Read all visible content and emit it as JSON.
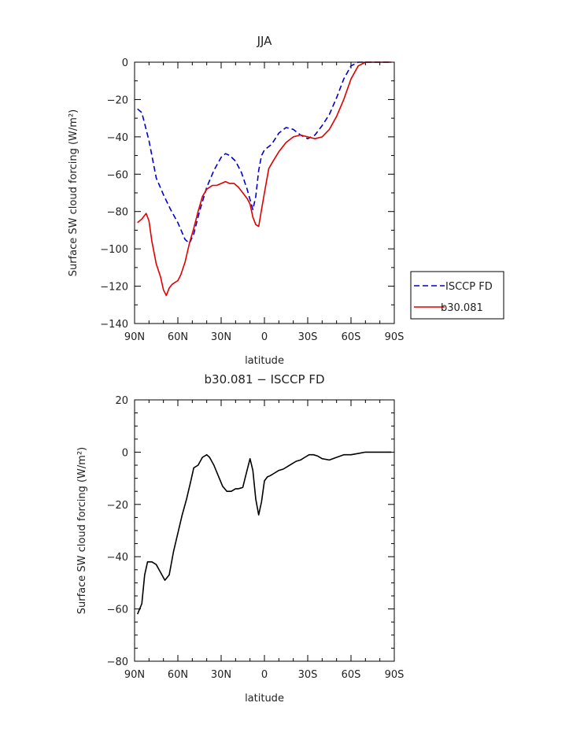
{
  "colors": {
    "isccp": "#0000cc",
    "model": "#e00000",
    "diff": "#000000",
    "axis": "#000000"
  },
  "chart_data": [
    {
      "type": "line",
      "title": "JJA",
      "xlabel": "latitude",
      "ylabel": "Surface SW cloud forcing (W/m²)",
      "xlim": [
        90,
        -90
      ],
      "ylim": [
        -140,
        0
      ],
      "xticks": [
        90,
        60,
        30,
        0,
        -30,
        -60,
        -90
      ],
      "xtick_labels": [
        "90N",
        "60N",
        "30N",
        "0",
        "30S",
        "60S",
        "90S"
      ],
      "yticks": [
        0,
        -20,
        -40,
        -60,
        -80,
        -100,
        -120,
        -140
      ],
      "ytick_labels": [
        "0",
        "−20",
        "−40",
        "−60",
        "−80",
        "−100",
        "−120",
        "−140"
      ],
      "legend_position": "right",
      "series": [
        {
          "name": "ISCCP FD",
          "style": "dashed",
          "color_key": "isccp",
          "x": [
            88,
            85,
            80,
            75,
            70,
            65,
            60,
            55,
            52,
            49,
            45,
            40,
            35,
            30,
            27,
            24,
            20,
            16,
            12,
            8,
            6,
            4,
            2,
            0,
            -5,
            -10,
            -15,
            -20,
            -25,
            -30,
            -35,
            -40,
            -45,
            -50,
            -55,
            -60,
            -65,
            -70,
            -75,
            -80,
            -85,
            -88
          ],
          "y": [
            -25,
            -27,
            -42,
            -62,
            -71,
            -79,
            -86,
            -95,
            -97,
            -92,
            -80,
            -67,
            -58,
            -51,
            -49,
            -50,
            -53,
            -59,
            -68,
            -79,
            -72,
            -58,
            -50,
            -47,
            -44,
            -38,
            -35,
            -36,
            -39,
            -41,
            -39,
            -34,
            -28,
            -19,
            -9,
            -2,
            0,
            0,
            0,
            0,
            0,
            0
          ]
        },
        {
          "name": "b30.081",
          "style": "solid",
          "color_key": "model",
          "x": [
            88,
            85,
            82,
            80,
            78,
            75,
            72,
            70,
            68,
            66,
            64,
            62,
            60,
            58,
            55,
            52,
            49,
            46,
            43,
            40,
            38,
            36,
            33,
            30,
            27,
            24,
            21,
            18,
            15,
            12,
            10,
            8,
            6,
            4,
            2,
            0,
            -3,
            -6,
            -10,
            -15,
            -20,
            -25,
            -30,
            -35,
            -40,
            -45,
            -50,
            -55,
            -60,
            -65,
            -70,
            -75,
            -80,
            -85,
            -88
          ],
          "y": [
            -86,
            -84,
            -81,
            -85,
            -96,
            -108,
            -115,
            -122,
            -125,
            -121,
            -119,
            -118,
            -117,
            -114,
            -107,
            -97,
            -89,
            -80,
            -72,
            -68,
            -67,
            -66,
            -66,
            -65,
            -64,
            -65,
            -65,
            -67,
            -70,
            -73,
            -76,
            -83,
            -87,
            -88,
            -79,
            -70,
            -57,
            -53,
            -48,
            -43,
            -40,
            -39,
            -40,
            -41,
            -40,
            -36,
            -29,
            -20,
            -9,
            -2,
            0,
            0,
            0,
            0,
            0
          ]
        }
      ]
    },
    {
      "type": "line",
      "title": "b30.081 − ISCCP FD",
      "xlabel": "latitude",
      "ylabel": "Surface SW cloud forcing (W/m²)",
      "xlim": [
        90,
        -90
      ],
      "ylim": [
        -80,
        20
      ],
      "xticks": [
        90,
        60,
        30,
        0,
        -30,
        -60,
        -90
      ],
      "xtick_labels": [
        "90N",
        "60N",
        "30N",
        "0",
        "30S",
        "60S",
        "90S"
      ],
      "yticks": [
        20,
        0,
        -20,
        -40,
        -60,
        -80
      ],
      "ytick_labels": [
        "20",
        "0",
        "−20",
        "−40",
        "−60",
        "−80"
      ],
      "series": [
        {
          "style": "solid",
          "color_key": "diff",
          "x": [
            88,
            85,
            83,
            81,
            78,
            75,
            72,
            69,
            66,
            63,
            60,
            57,
            54,
            51,
            49,
            46,
            43,
            40,
            38,
            35,
            32,
            29,
            26,
            23,
            20,
            18,
            15,
            13,
            10,
            8,
            6,
            4,
            2,
            0,
            -2,
            -4,
            -7,
            -10,
            -13,
            -16,
            -19,
            -22,
            -25,
            -28,
            -31,
            -34,
            -37,
            -40,
            -45,
            -50,
            -55,
            -60,
            -65,
            -70,
            -75,
            -80,
            -85,
            -88
          ],
          "y": [
            -62,
            -58,
            -47,
            -42,
            -42,
            -43,
            -46,
            -49,
            -47,
            -38,
            -31,
            -24,
            -18,
            -11,
            -6,
            -5,
            -2,
            -1,
            -2,
            -5,
            -9,
            -13,
            -15,
            -15,
            -14,
            -14,
            -13.5,
            -9,
            -2.5,
            -7,
            -18,
            -24,
            -19,
            -11,
            -9.5,
            -9,
            -8,
            -7,
            -6.5,
            -5.5,
            -4.5,
            -3.5,
            -3,
            -2,
            -1,
            -1,
            -1.5,
            -2.5,
            -3,
            -2,
            -1,
            -1,
            -0.5,
            0,
            0,
            0,
            0,
            0
          ]
        }
      ]
    }
  ]
}
